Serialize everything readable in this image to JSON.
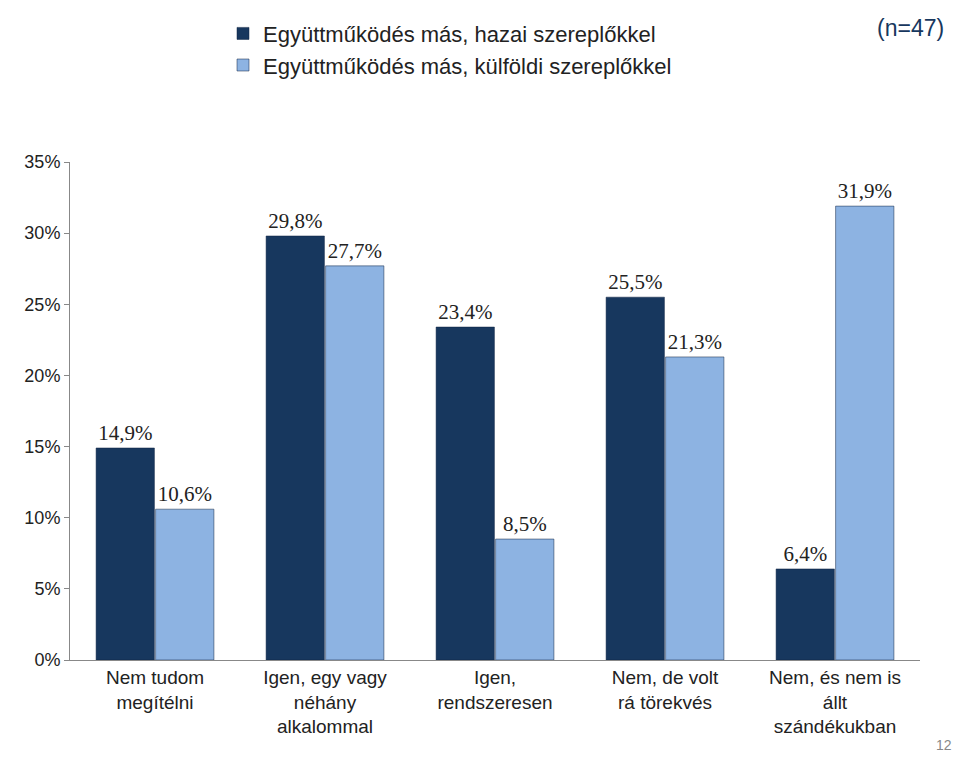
{
  "chart_data": {
    "type": "bar",
    "categories": [
      "Nem tudom megítélni",
      "Igen, egy vagy néhány alkalommal",
      "Igen, rendszeresen",
      "Nem, de volt rá törekvés",
      "Nem, és nem is állt szándékukban"
    ],
    "series": [
      {
        "name": "Együttműködés más, hazai szereplőkkel",
        "color": "#17375e",
        "values": [
          14.9,
          29.8,
          23.4,
          25.5,
          6.4
        ],
        "value_labels": [
          "14,9%",
          "29,8%",
          "23,4%",
          "25,5%",
          "6,4%"
        ]
      },
      {
        "name": "Együttműködés más, külföldi szereplőkkel",
        "color": "#8db3e2",
        "values": [
          10.6,
          27.7,
          8.5,
          21.3,
          31.9
        ],
        "value_labels": [
          "10,6%",
          "27,7%",
          "8,5%",
          "21,3%",
          "31,9%"
        ]
      }
    ],
    "ylim": [
      0,
      35
    ],
    "yticks": [
      {
        "value": 0,
        "label": "0%"
      },
      {
        "value": 5,
        "label": "5%"
      },
      {
        "value": 10,
        "label": "10%"
      },
      {
        "value": 15,
        "label": "15%"
      },
      {
        "value": 20,
        "label": "20%"
      },
      {
        "value": 25,
        "label": "25%"
      },
      {
        "value": 30,
        "label": "30%"
      },
      {
        "value": 35,
        "label": "35%"
      }
    ],
    "grid": false,
    "legend": "top",
    "data_labels": true,
    "annotations": [
      {
        "text": "(n=47)"
      },
      {
        "text": "12"
      }
    ]
  }
}
